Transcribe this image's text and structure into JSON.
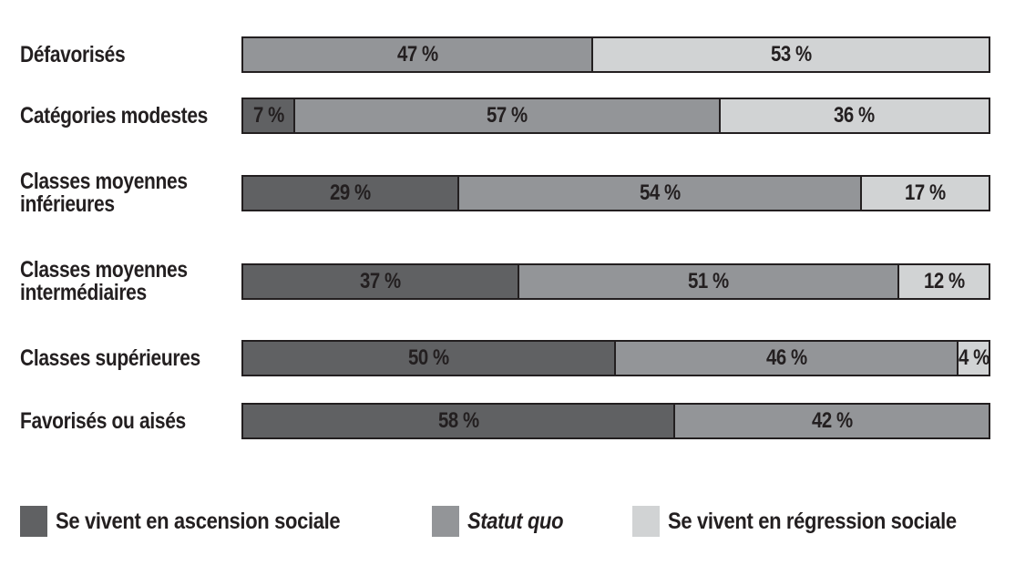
{
  "colors": {
    "ascension": "#606163",
    "statut_quo": "#939598",
    "regression": "#d1d3d4",
    "border": "#231f20",
    "text": "#231f20",
    "background": "#ffffff"
  },
  "chart_data": {
    "type": "bar",
    "orientation": "horizontal",
    "stacked": true,
    "value_unit": "%",
    "xlim": [
      0,
      100
    ],
    "grid": false,
    "legend_position": "bottom",
    "categories": [
      "Défavorisés",
      "Catégories modestes",
      "Classes moyennes inférieures",
      "Classes moyennes intermédiaires",
      "Classes supérieures",
      "Favorisés ou aisés"
    ],
    "series": [
      {
        "name": "Se vivent en ascension sociale",
        "color": "#606163",
        "values": [
          0,
          7,
          29,
          37,
          50,
          58
        ]
      },
      {
        "name": "Statut quo",
        "color": "#939598",
        "values": [
          47,
          57,
          54,
          51,
          46,
          42
        ]
      },
      {
        "name": "Se vivent en régression sociale",
        "color": "#d1d3d4",
        "values": [
          53,
          36,
          17,
          12,
          4,
          0
        ]
      }
    ]
  },
  "rows": [
    {
      "label_lines": [
        "Défavorisés"
      ],
      "segments": [
        {
          "series": "statut_quo",
          "value": 47,
          "label": "47 %"
        },
        {
          "series": "regression",
          "value": 53,
          "label": "53 %"
        }
      ]
    },
    {
      "label_lines": [
        "Catégories modestes"
      ],
      "segments": [
        {
          "series": "ascension",
          "value": 7,
          "label": "7 %"
        },
        {
          "series": "statut_quo",
          "value": 57,
          "label": "57 %"
        },
        {
          "series": "regression",
          "value": 36,
          "label": "36 %"
        }
      ]
    },
    {
      "label_lines": [
        "Classes moyennes",
        "inférieures"
      ],
      "segments": [
        {
          "series": "ascension",
          "value": 29,
          "label": "29 %"
        },
        {
          "series": "statut_quo",
          "value": 54,
          "label": "54 %"
        },
        {
          "series": "regression",
          "value": 17,
          "label": "17 %"
        }
      ]
    },
    {
      "label_lines": [
        "Classes moyennes",
        "intermédiaires"
      ],
      "segments": [
        {
          "series": "ascension",
          "value": 37,
          "label": "37 %"
        },
        {
          "series": "statut_quo",
          "value": 51,
          "label": "51 %"
        },
        {
          "series": "regression",
          "value": 12,
          "label": "12 %"
        }
      ]
    },
    {
      "label_lines": [
        "Classes supérieures"
      ],
      "segments": [
        {
          "series": "ascension",
          "value": 50,
          "label": "50 %"
        },
        {
          "series": "statut_quo",
          "value": 46,
          "label": "46 %"
        },
        {
          "series": "regression",
          "value": 4,
          "label": "4 %"
        }
      ]
    },
    {
      "label_lines": [
        "Favorisés ou aisés"
      ],
      "segments": [
        {
          "series": "ascension",
          "value": 58,
          "label": "58 %"
        },
        {
          "series": "statut_quo",
          "value": 42,
          "label": "42 %"
        }
      ]
    }
  ],
  "legend": {
    "items": [
      {
        "label": "Se vivent en ascension sociale",
        "series": "ascension",
        "italic": false
      },
      {
        "label": "Statut quo",
        "series": "statut_quo",
        "italic": true
      },
      {
        "label": "Se vivent en régression sociale",
        "series": "regression",
        "italic": false
      }
    ]
  }
}
